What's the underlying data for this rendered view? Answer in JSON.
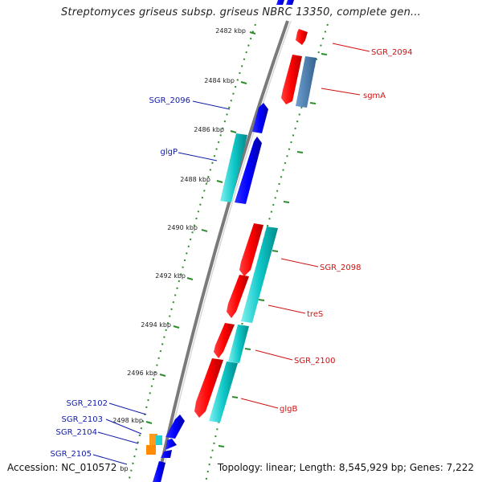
{
  "title": "Streptomyces griseus subsp. griseus NBRC 13350, complete gen...",
  "footer": {
    "accession_label": "Accession: NC_010572",
    "accession_unit": "bp",
    "summary": "Topology: linear; Length: 8,545,929 bp; Genes: 7,222"
  },
  "scale_labels": [
    {
      "name": "tick-2482",
      "text": "2482 kbp"
    },
    {
      "name": "tick-2484",
      "text": "2484 kbp"
    },
    {
      "name": "tick-2486",
      "text": "2486 kbp"
    },
    {
      "name": "tick-2488",
      "text": "2488 kbp"
    },
    {
      "name": "tick-2490",
      "text": "2490 kbp"
    },
    {
      "name": "tick-2492",
      "text": "2492 kbp"
    },
    {
      "name": "tick-2494",
      "text": "2494 kbp"
    },
    {
      "name": "tick-2496",
      "text": "2496 kbp"
    },
    {
      "name": "tick-2498",
      "text": "2498 kbp"
    }
  ],
  "genes_right": [
    {
      "name": "SGR_2094",
      "color": "#d01010"
    },
    {
      "name": "sgmA",
      "color": "#d01010"
    },
    {
      "name": "SGR_2098",
      "color": "#d01010"
    },
    {
      "name": "treS",
      "color": "#d01010"
    },
    {
      "name": "SGR_2100",
      "color": "#d01010"
    },
    {
      "name": "glgB",
      "color": "#d01010"
    }
  ],
  "genes_left": [
    {
      "name": "SGR_2096",
      "color": "#0f1aa8"
    },
    {
      "name": "glgP",
      "color": "#0f1aa8"
    },
    {
      "name": "SGR_2102",
      "color": "#0f1aa8"
    },
    {
      "name": "SGR_2103",
      "color": "#0f1aa8"
    },
    {
      "name": "SGR_2104",
      "color": "#0f1aa8"
    },
    {
      "name": "SGR_2105",
      "color": "#0f1aa8"
    }
  ],
  "colors": {
    "forward_cds": "#ff0000",
    "reverse_cds": "#0000ff",
    "gene_feature": "#00c8c8",
    "rna_feature": "#4a7fb5",
    "backbone": "#7a7a7a",
    "scale_dots": "#2e8b2e"
  }
}
